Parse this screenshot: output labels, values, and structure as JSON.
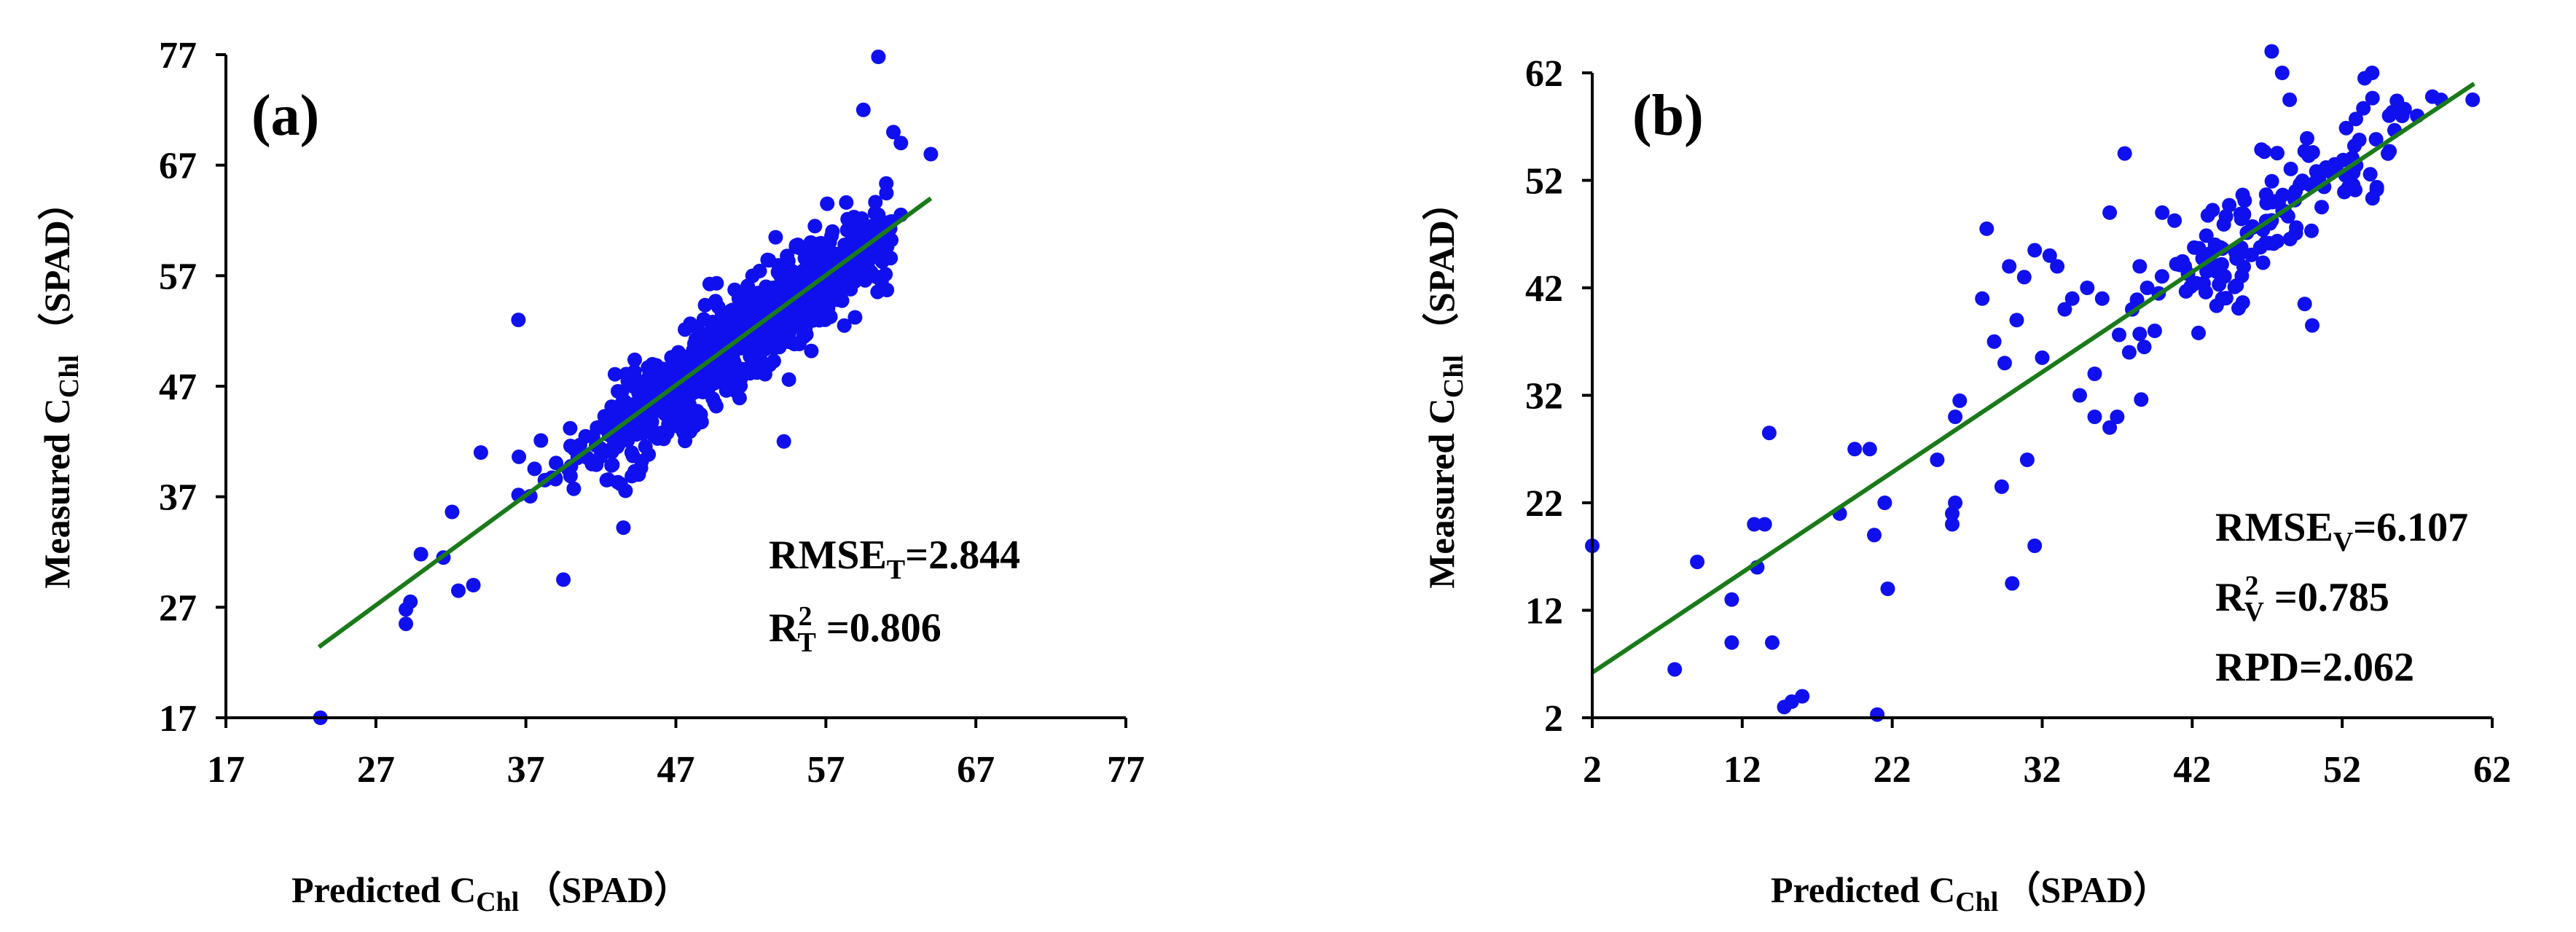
{
  "chart_data": [
    {
      "type": "scatter",
      "panel_label": "(a)",
      "title": "",
      "xlabel": "Predicted C",
      "xlabel_sub": "Chl",
      "xlabel_unit": "（SPAD）",
      "ylabel": "Measured  C",
      "ylabel_sub": "Chl",
      "ylabel_unit": "（SPAD）",
      "xlim": [
        17,
        77
      ],
      "ylim": [
        17,
        77
      ],
      "x_ticks": [
        17,
        27,
        37,
        47,
        57,
        67,
        77
      ],
      "y_ticks": [
        17,
        27,
        37,
        47,
        57,
        67,
        77
      ],
      "point_color": "#1010ee",
      "line_color": "#1a7a1a",
      "fit_line": {
        "x": [
          23.2,
          64.0
        ],
        "y": [
          23.4,
          64.0
        ]
      },
      "stats": [
        {
          "main": "RMSE",
          "sub": "T",
          "sup": "",
          "rest": "=2.844"
        },
        {
          "main": "R",
          "sub": "T",
          "sup": "2",
          "rest": " =0.806"
        }
      ],
      "points": {
        "generated": true,
        "n": 900,
        "center": [
          51.5,
          51.5
        ],
        "sd_major": 5.6,
        "sd_noise": 2.2,
        "x_range": [
          29,
          61.5
        ],
        "seed": 11,
        "extra": [
          [
            23.3,
            17.0
          ],
          [
            29.0,
            25.5
          ],
          [
            29.0,
            26.8
          ],
          [
            29.3,
            27.5
          ],
          [
            30.0,
            31.8
          ],
          [
            31.5,
            31.5
          ],
          [
            32.5,
            28.5
          ],
          [
            33.5,
            29.0
          ],
          [
            34.0,
            41.0
          ],
          [
            36.5,
            53.0
          ],
          [
            39.5,
            29.5
          ],
          [
            43.5,
            34.2
          ],
          [
            54.2,
            42.0
          ],
          [
            59.5,
            72.0
          ],
          [
            60.5,
            76.8
          ],
          [
            61.5,
            70.0
          ],
          [
            62.0,
            69.0
          ],
          [
            64.0,
            68.0
          ],
          [
            60.5,
            62.5
          ],
          [
            61.0,
            60.0
          ],
          [
            62.0,
            62.5
          ]
        ]
      }
    },
    {
      "type": "scatter",
      "panel_label": "(b)",
      "title": "",
      "xlabel": "Predicted C",
      "xlabel_sub": "Chl",
      "xlabel_unit": "（SPAD）",
      "ylabel": "Measured  C",
      "ylabel_sub": "Chl",
      "ylabel_unit": "（SPAD）",
      "xlim": [
        2,
        62
      ],
      "ylim": [
        2,
        62
      ],
      "x_ticks": [
        2,
        12,
        22,
        32,
        42,
        52,
        62
      ],
      "y_ticks": [
        2,
        12,
        22,
        32,
        42,
        52,
        62
      ],
      "point_color": "#1010ee",
      "line_color": "#1a7a1a",
      "fit_line": {
        "x": [
          2.0,
          60.8
        ],
        "y": [
          6.2,
          61.0
        ]
      },
      "stats": [
        {
          "main": "RMSE",
          "sub": "V",
          "sup": "",
          "rest": "=6.107"
        },
        {
          "main": "R",
          "sub": "V",
          "sup": "2",
          "rest": " =0.785"
        },
        {
          "main": "RPD=2.062",
          "sub": "",
          "sup": "",
          "rest": ""
        }
      ],
      "points": {
        "generated": true,
        "n": 140,
        "center": [
          47.5,
          49.0
        ],
        "sd_major": 5.0,
        "sd_noise": 2.6,
        "x_range": [
          37,
          60
        ],
        "seed": 29,
        "extra": [
          [
            2.0,
            18.0
          ],
          [
            7.5,
            6.5
          ],
          [
            9.0,
            16.5
          ],
          [
            11.3,
            13.0
          ],
          [
            11.3,
            9.0
          ],
          [
            12.8,
            20.0
          ],
          [
            13.0,
            16.0
          ],
          [
            13.5,
            20.0
          ],
          [
            13.8,
            28.5
          ],
          [
            14.0,
            9.0
          ],
          [
            14.8,
            3.0
          ],
          [
            15.3,
            3.5
          ],
          [
            16.0,
            4.0
          ],
          [
            18.5,
            21.0
          ],
          [
            19.5,
            27.0
          ],
          [
            20.5,
            27.0
          ],
          [
            20.8,
            19.0
          ],
          [
            21.0,
            2.3
          ],
          [
            21.5,
            22.0
          ],
          [
            21.7,
            14.0
          ],
          [
            25.0,
            26.0
          ],
          [
            26.0,
            20.0
          ],
          [
            26.0,
            21.0
          ],
          [
            26.2,
            22.0
          ],
          [
            26.2,
            30.0
          ],
          [
            26.5,
            31.5
          ],
          [
            28.0,
            41.0
          ],
          [
            28.3,
            47.5
          ],
          [
            28.8,
            37.0
          ],
          [
            29.3,
            23.5
          ],
          [
            29.5,
            35.0
          ],
          [
            29.8,
            44.0
          ],
          [
            30.0,
            14.5
          ],
          [
            30.3,
            39.0
          ],
          [
            30.8,
            43.0
          ],
          [
            31.0,
            26.0
          ],
          [
            31.5,
            18.0
          ],
          [
            31.5,
            45.5
          ],
          [
            32.0,
            35.5
          ],
          [
            32.5,
            45.0
          ],
          [
            33.0,
            44.0
          ],
          [
            33.5,
            40.0
          ],
          [
            34.0,
            41.0
          ],
          [
            34.5,
            32.0
          ],
          [
            35.0,
            42.0
          ],
          [
            35.5,
            30.0
          ],
          [
            35.5,
            34.0
          ],
          [
            36.0,
            41.0
          ],
          [
            36.5,
            29.0
          ],
          [
            36.5,
            49.0
          ],
          [
            37.0,
            30.0
          ],
          [
            37.5,
            54.5
          ],
          [
            37.8,
            36.0
          ],
          [
            38.0,
            40.0
          ],
          [
            38.5,
            44.0
          ],
          [
            38.8,
            36.5
          ],
          [
            39.0,
            42.0
          ],
          [
            39.5,
            38.0
          ],
          [
            40.0,
            49.0
          ],
          [
            47.3,
            64.0
          ],
          [
            48.0,
            62.0
          ],
          [
            48.5,
            59.5
          ],
          [
            53.5,
            61.5
          ],
          [
            54.0,
            62.0
          ],
          [
            56.0,
            58.0
          ],
          [
            57.0,
            58.0
          ],
          [
            60.7,
            59.5
          ],
          [
            50.0,
            38.5
          ],
          [
            49.5,
            40.5
          ],
          [
            44.0,
            41.0
          ]
        ]
      }
    }
  ]
}
